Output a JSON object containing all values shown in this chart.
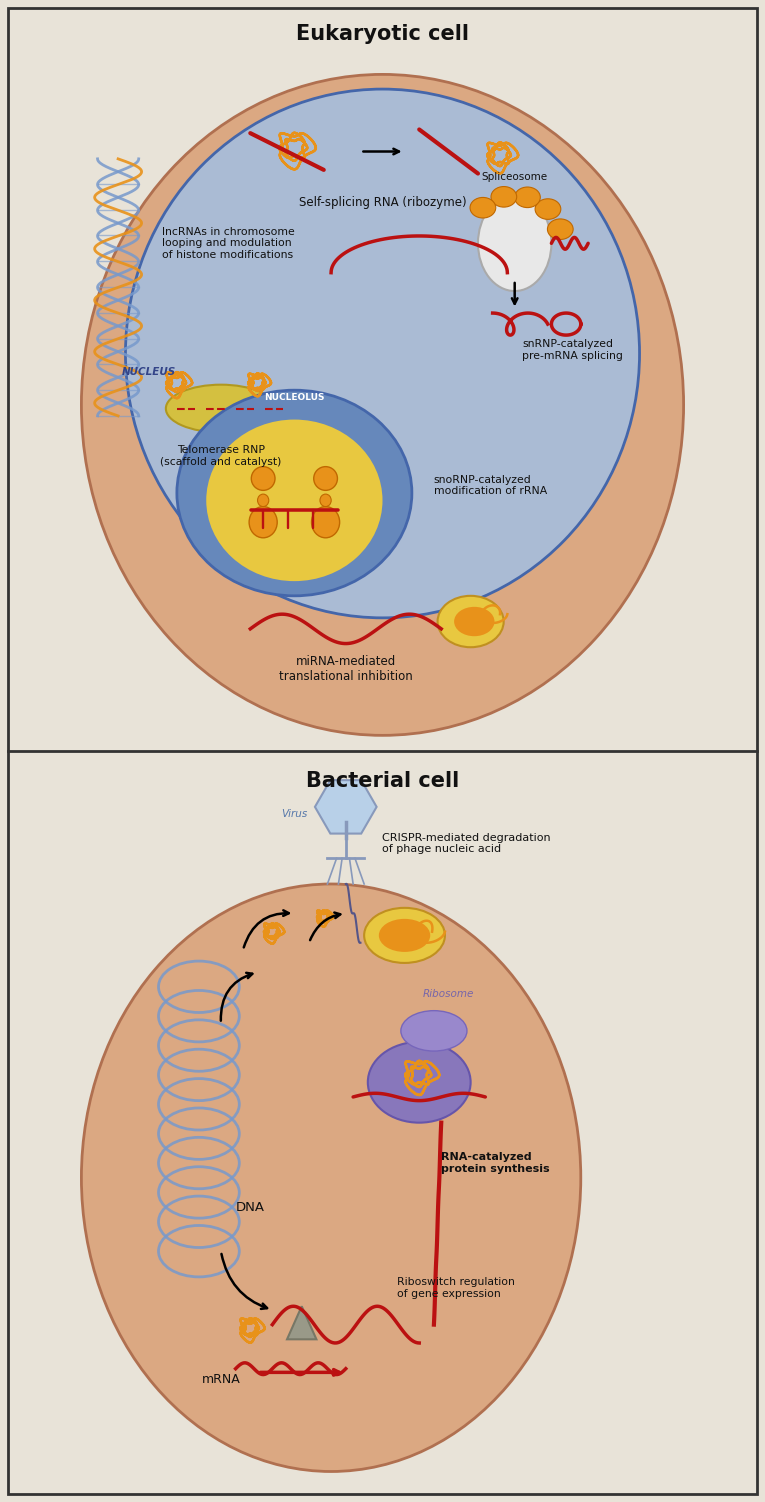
{
  "title_eukaryotic": "Eukaryotic cell",
  "title_bacterial": "Bacterial cell",
  "bg_color": "#e8e3d8",
  "cell_color": "#dda882",
  "cell_edge": "#c07050",
  "nucleus_color": "#aabbd4",
  "nucleus_edge": "#5577aa",
  "nucleolus_color": "#6688bb",
  "nucleolus_edge": "#4466aa",
  "nucleolus_inner_color": "#e8c840",
  "orange_color": "#e8921a",
  "red_color": "#bb1111",
  "blue_dna": "#7799cc",
  "purple_ribo": "#8877bb",
  "yellow_color": "#e8c840",
  "gray_color": "#999999",
  "white_color": "#ffffff",
  "label_self_splicing": "Self-splicing RNA (ribozyme)",
  "label_lncrna": "lncRNAs in chromosome\nlooping and modulation\nof histone modifications",
  "label_telomerase": "Telomerase RNP\n(scaffold and catalyst)",
  "label_spliceosome": "Spliceosome",
  "label_snrnp": "snRNP-catalyzed\npre-mRNA splicing",
  "label_snornp": "snoRNP-catalyzed\nmodification of rRNA",
  "label_mirna": "miRNA-mediated\ntranslational inhibition",
  "label_crispr": "CRISPR-mediated degradation\nof phage nucleic acid",
  "label_virus": "Virus",
  "label_dna": "DNA",
  "label_ribosome": "Ribosome",
  "label_rna_catalyzed": "RNA-catalyzed\nprotein synthesis",
  "label_riboswitch": "Riboswitch regulation\nof gene expression",
  "label_mrna": "mRNA",
  "text_nucleus": "NUCLEUS",
  "text_nucleolus": "NUCLEOLUS"
}
